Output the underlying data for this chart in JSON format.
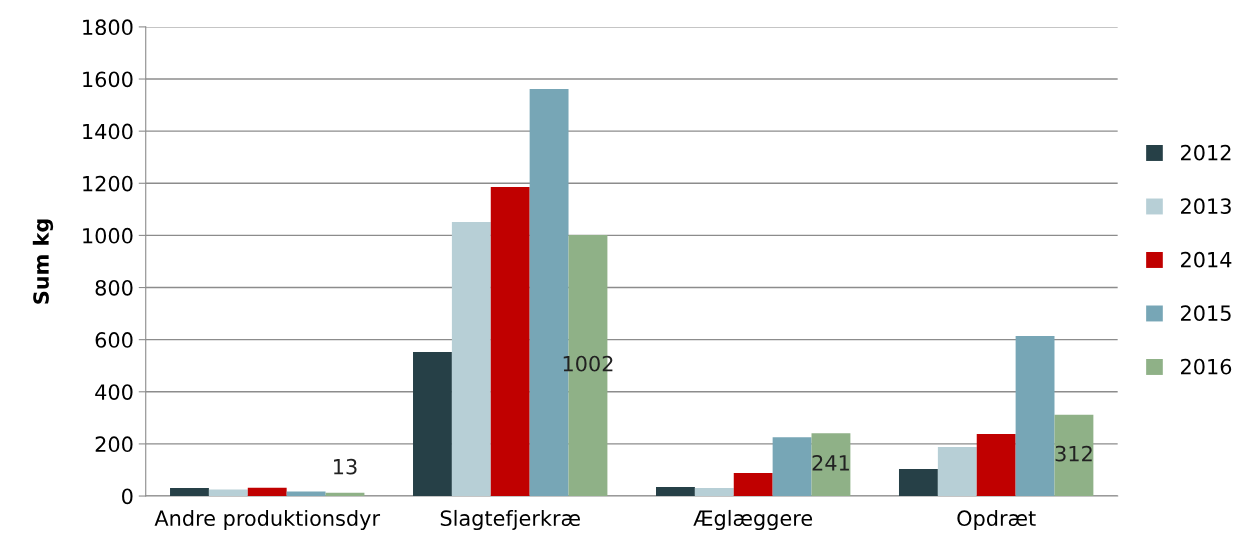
{
  "chart_data": {
    "type": "bar",
    "ylabel": "Sum kg",
    "categories": [
      "Andre produktionsdyr",
      "Slagtefjerkræ",
      "Æglæggere",
      "Opdræt"
    ],
    "series": [
      {
        "name": "2012",
        "color": "#264047",
        "values": [
          31,
          553,
          35,
          104
        ]
      },
      {
        "name": "2013",
        "color": "#b7cfd6",
        "values": [
          25,
          1051,
          31,
          188
        ]
      },
      {
        "name": "2014",
        "color": "#c00000",
        "values": [
          32,
          1186,
          88,
          238
        ]
      },
      {
        "name": "2015",
        "color": "#77a6b6",
        "values": [
          17,
          1562,
          226,
          614
        ]
      },
      {
        "name": "2016",
        "color": "#8fb187",
        "values": [
          13,
          1002,
          241,
          312
        ],
        "value_labels": [
          "13",
          "1002",
          "241",
          "312"
        ]
      }
    ],
    "ylim": [
      0,
      1800
    ],
    "yticks": [
      0,
      200,
      400,
      600,
      800,
      1000,
      1200,
      1400,
      1600,
      1800
    ],
    "grid": "y",
    "legend": "right"
  }
}
